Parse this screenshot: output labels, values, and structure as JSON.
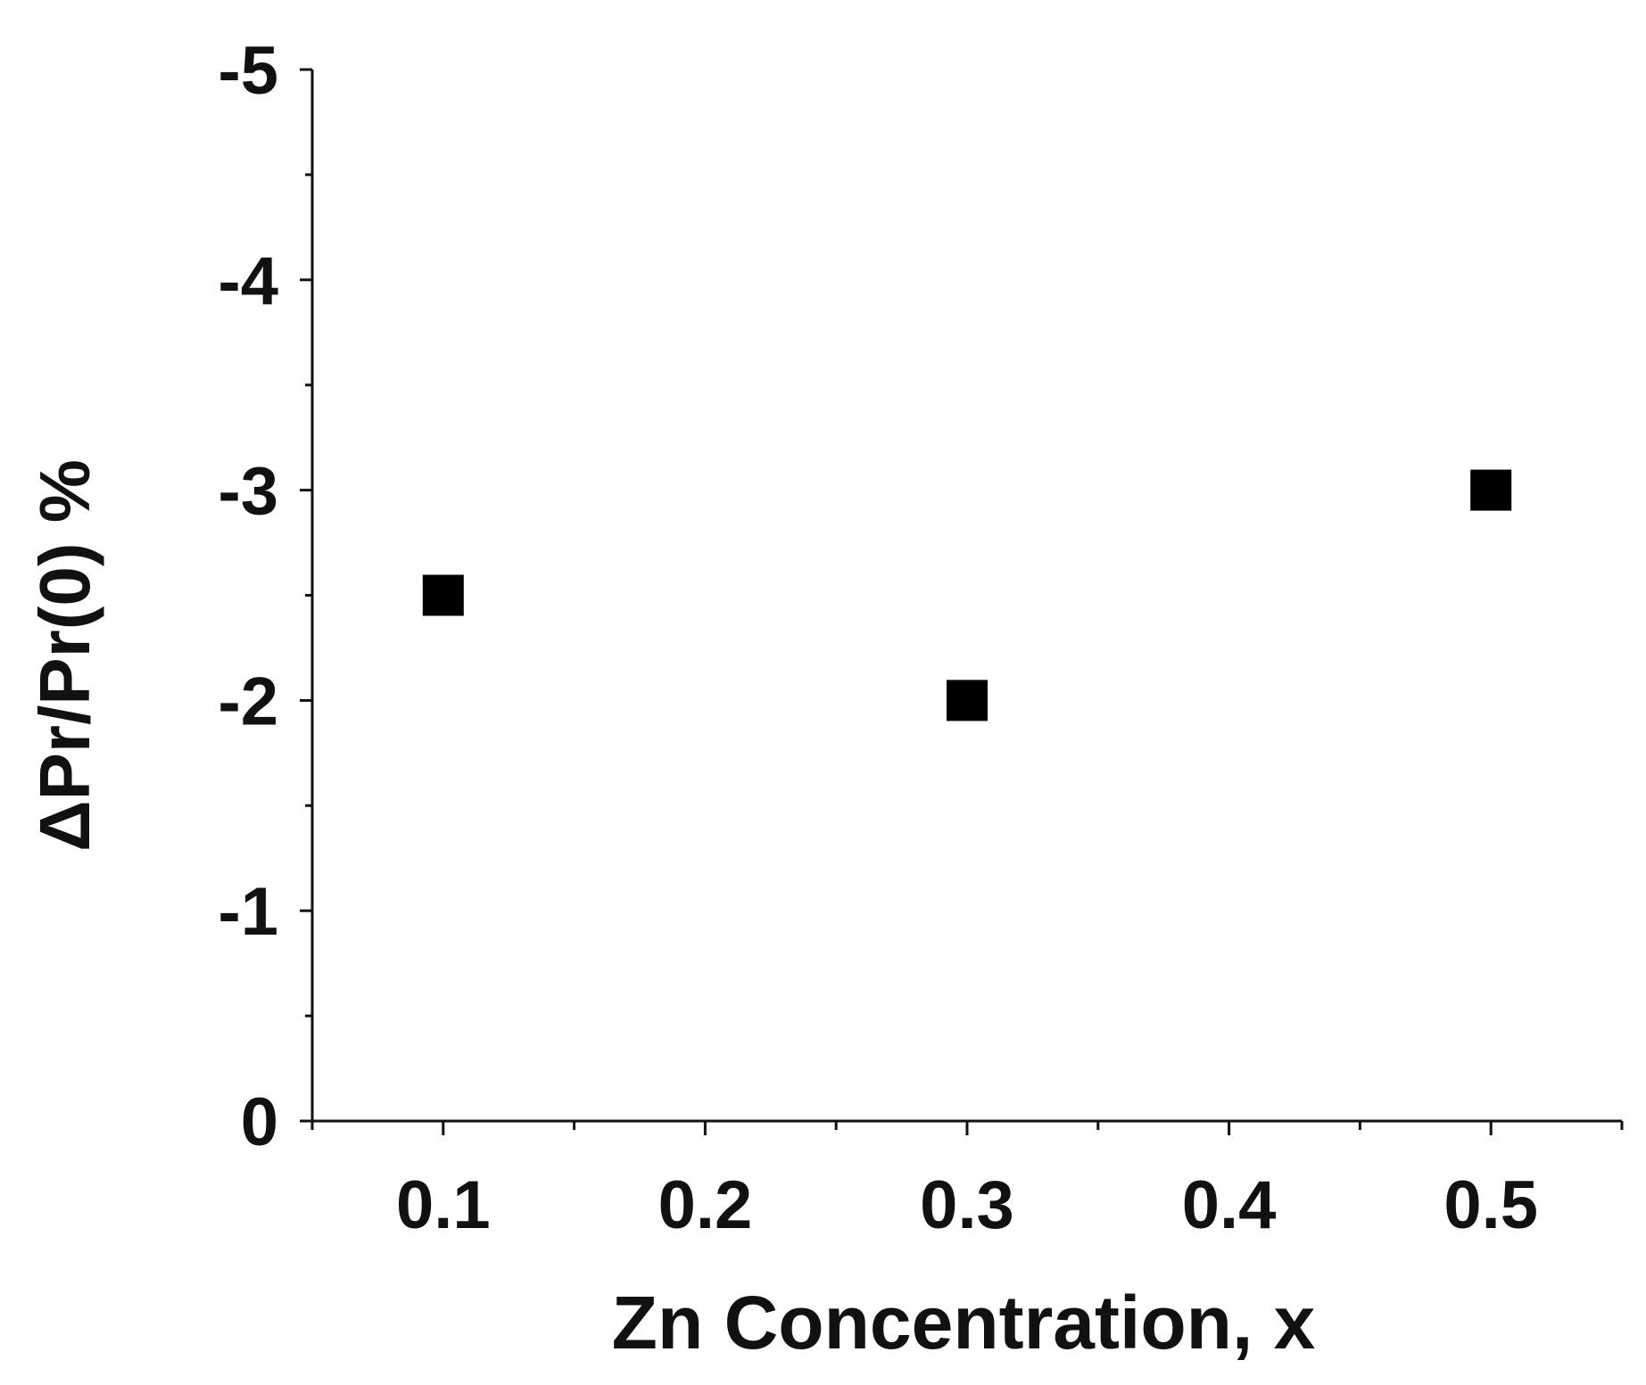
{
  "chart_data": {
    "type": "scatter",
    "xlabel": "Zn Concentration, x",
    "ylabel": "ΔPr/Pr(0) %",
    "xlim": [
      0.05,
      0.55
    ],
    "ylim": [
      0,
      -5
    ],
    "y_axis_inverted": true,
    "x_ticks": [
      0.1,
      0.2,
      0.3,
      0.4,
      0.5
    ],
    "x_tick_labels": [
      "0.1",
      "0.2",
      "0.3",
      "0.4",
      "0.5"
    ],
    "y_ticks": [
      0,
      -1,
      -2,
      -3,
      -4,
      -5
    ],
    "y_tick_labels": [
      "0",
      "-1",
      "-2",
      "-3",
      "-4",
      "-5"
    ],
    "grid": false,
    "series": [
      {
        "marker": "square",
        "color": "#000000",
        "points": [
          {
            "x": 0.1,
            "y": -2.5
          },
          {
            "x": 0.3,
            "y": -2.0
          },
          {
            "x": 0.5,
            "y": -3.0
          }
        ]
      }
    ]
  }
}
